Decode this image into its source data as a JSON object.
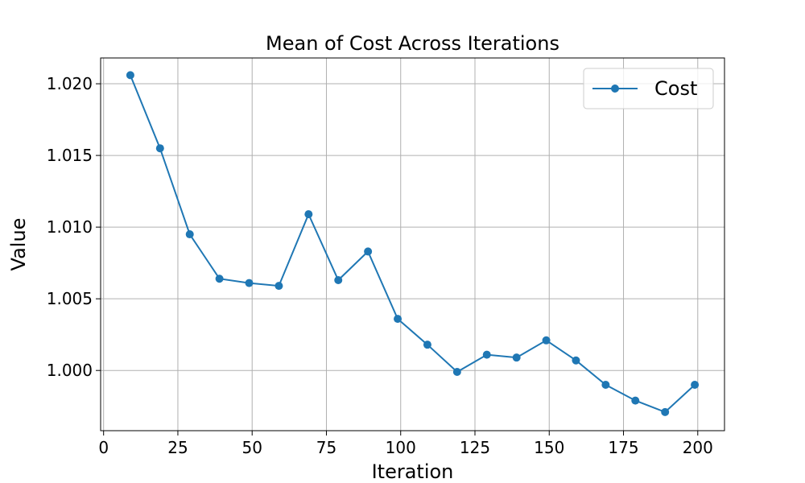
{
  "chart_data": {
    "type": "line",
    "title": "Mean of Cost Across Iterations",
    "xlabel": "Iteration",
    "ylabel": "Value",
    "xlim": [
      -1,
      209
    ],
    "ylim": [
      0.9958,
      1.0218
    ],
    "xticks": [
      0,
      25,
      50,
      75,
      100,
      125,
      150,
      175,
      200
    ],
    "yticks": [
      1.0,
      1.005,
      1.01,
      1.015,
      1.02
    ],
    "ytick_labels": [
      "1.000",
      "1.005",
      "1.010",
      "1.015",
      "1.020"
    ],
    "grid": true,
    "legend": {
      "placement": "top-right",
      "entries": [
        "Cost"
      ]
    },
    "series": [
      {
        "name": "Cost",
        "color": "#1f77b4",
        "marker": "circle",
        "x": [
          9,
          19,
          29,
          39,
          49,
          59,
          69,
          79,
          89,
          99,
          109,
          119,
          129,
          139,
          149,
          159,
          169,
          179,
          189,
          199
        ],
        "y": [
          1.0206,
          1.0155,
          1.0095,
          1.0064,
          1.0061,
          1.0059,
          1.0109,
          1.0063,
          1.0083,
          1.0036,
          1.0018,
          0.9999,
          1.0011,
          1.0009,
          1.0021,
          1.0007,
          0.999,
          0.9979,
          0.9971,
          0.999
        ]
      }
    ]
  }
}
